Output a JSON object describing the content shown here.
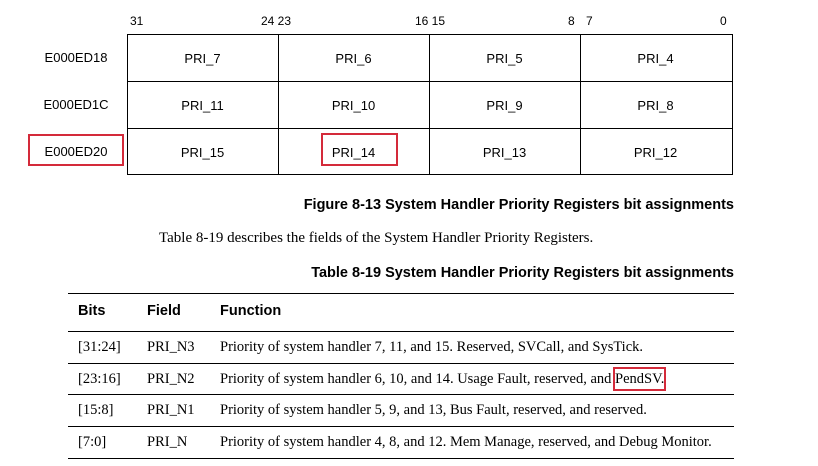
{
  "bit_labels": [
    "31",
    "24 23",
    "16 15",
    "8",
    "7",
    "0"
  ],
  "registers": [
    {
      "address": "E000ED18",
      "fields": [
        "PRI_7",
        "PRI_6",
        "PRI_5",
        "PRI_4"
      ]
    },
    {
      "address": "E000ED1C",
      "fields": [
        "PRI_11",
        "PRI_10",
        "PRI_9",
        "PRI_8"
      ]
    },
    {
      "address": "E000ED20",
      "fields": [
        "PRI_15",
        "PRI_14",
        "PRI_13",
        "PRI_12"
      ]
    }
  ],
  "figure_caption": "Figure 8-13 System Handler Priority Registers bit assignments",
  "body_text": "Table 8-19 describes the fields of the System Handler Priority Registers.",
  "table": {
    "caption": "Table 8-19 System Handler Priority Registers bit assignments",
    "headers": [
      "Bits",
      "Field",
      "Function"
    ],
    "rows": [
      {
        "bits": "[31:24]",
        "field": "PRI_N3",
        "function": "Priority of system handler 7, 11, and 15. Reserved, SVCall, and SysTick.",
        "function_tail": ""
      },
      {
        "bits": "[23:16]",
        "field": "PRI_N2",
        "function": "Priority of system handler 6, 10, and 14. Usage Fault, reserved, and ",
        "function_tail": "PendSV."
      },
      {
        "bits": "[15:8]",
        "field": "PRI_N1",
        "function": "Priority of system handler 5, 9, and 13, Bus Fault, reserved, and reserved.",
        "function_tail": ""
      },
      {
        "bits": "[7:0]",
        "field": "PRI_N",
        "function": "Priority of system handler 4, 8, and 12. Mem Manage, reserved, and Debug Monitor.",
        "function_tail": ""
      }
    ]
  },
  "highlight_color": "#d42a3a"
}
